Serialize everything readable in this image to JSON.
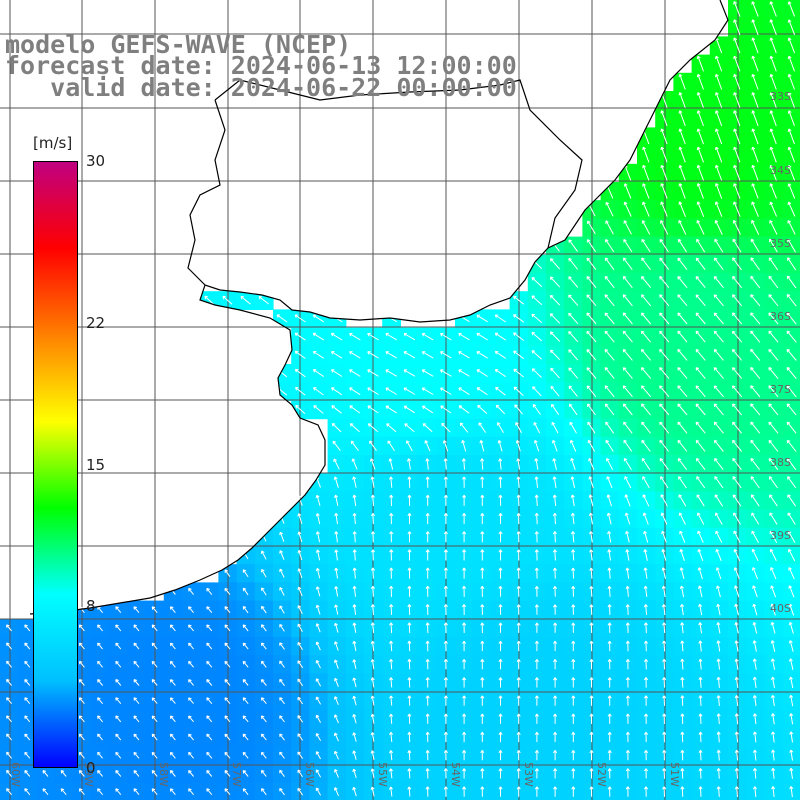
{
  "title": {
    "line1": "modelo GEFS-WAVE (NCEP)",
    "line2": "forecast date: 2024-06-13 12:00:00",
    "line3": "   valid date: 2024-06-22 00:00:00"
  },
  "colorbar": {
    "units": "[m/s]",
    "ticks": [
      {
        "value": 30,
        "label": "30"
      },
      {
        "value": 22,
        "label": "22"
      },
      {
        "value": 15,
        "label": "15"
      },
      {
        "value": 8,
        "label": "8"
      },
      {
        "value": 0,
        "label": "0"
      }
    ],
    "min": 0,
    "max": 30,
    "colors": [
      "#0000ff",
      "#00c0ff",
      "#00ffff",
      "#00ff00",
      "#ffff00",
      "#ff8000",
      "#ff0000",
      "#c00080"
    ]
  },
  "map": {
    "variable": "wind speed and direction",
    "projection": "equirectangular",
    "grid": true,
    "land_color": "#ffffff",
    "coastline_color": "#000000",
    "lon_labels_bottom": [
      "60W",
      "59W",
      "58W",
      "57W",
      "56W",
      "55W",
      "54W",
      "53W",
      "52W",
      "51W"
    ],
    "lat_labels_right": [
      "33S",
      "34S",
      "35S",
      "36S",
      "37S",
      "38S",
      "39S",
      "40S"
    ],
    "regions": [
      {
        "area": "northeast offshore (Brazil/Uruguay coast)",
        "speed_ms": 12.5,
        "direction": "from SSE"
      },
      {
        "area": "east offshore",
        "speed_ms": 10.5,
        "direction": "from SE"
      },
      {
        "area": "Rio de la Plata mouth",
        "speed_ms": 8.5,
        "direction": "from ESE"
      },
      {
        "area": "central offshore",
        "speed_ms": 6.5,
        "direction": "from S"
      },
      {
        "area": "south offshore",
        "speed_ms": 5.5,
        "direction": "from S"
      },
      {
        "area": "southwest near coast",
        "speed_ms": 3.0,
        "direction": "from SE"
      }
    ]
  }
}
